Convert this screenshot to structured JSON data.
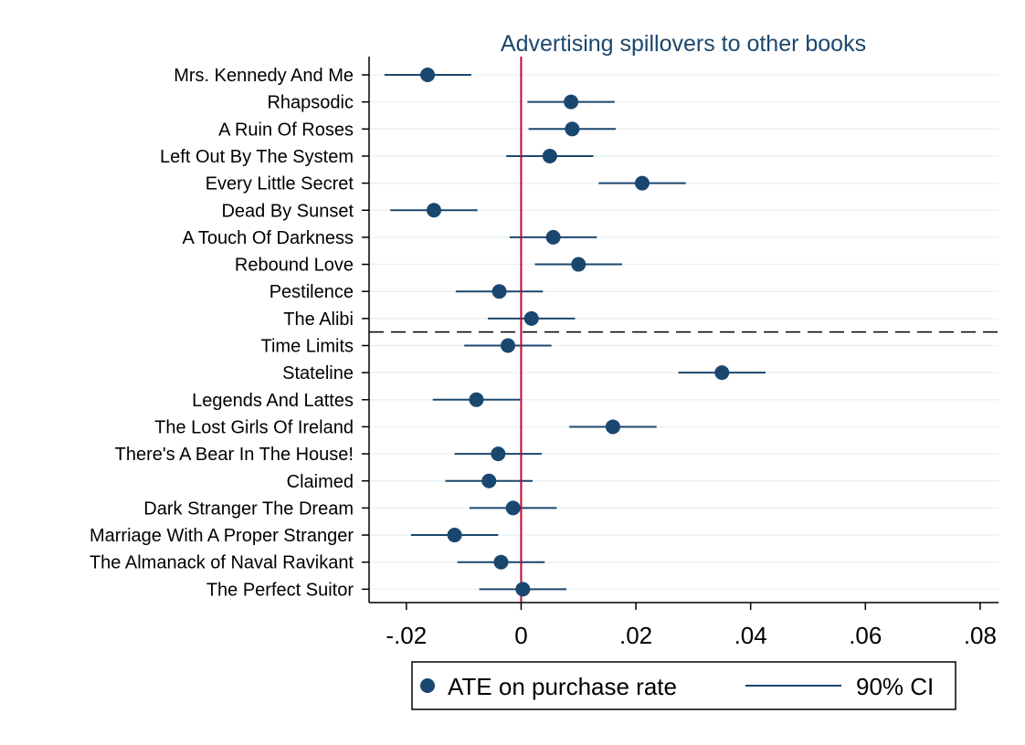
{
  "chart_data": {
    "type": "coefficient-plot",
    "title": "Advertising spillovers to other books",
    "xlabel": "",
    "ylabel": "",
    "xlim": [
      -0.0265,
      0.0832
    ],
    "x_ticks": [
      {
        "value": -0.02,
        "label": "-.02"
      },
      {
        "value": 0,
        "label": "0"
      },
      {
        "value": 0.02,
        "label": ".02"
      },
      {
        "value": 0.04,
        "label": ".04"
      },
      {
        "value": 0.06,
        "label": ".06"
      },
      {
        "value": 0.08,
        "label": ".08"
      }
    ],
    "reference_line_x": 0,
    "separator_after_index": 9,
    "grid": true,
    "legend": {
      "placement": "bottom",
      "entries": [
        {
          "label": "ATE on purchase rate",
          "marker": "circle"
        },
        {
          "label": "90% CI",
          "marker": "line"
        }
      ]
    },
    "colors": {
      "point": "#1a476f",
      "ci": "#1a476f",
      "reference_line": "#c10534",
      "grid": "#eaf2f3",
      "separator": "#000000"
    },
    "categories": [
      "Mrs. Kennedy And Me",
      "Rhapsodic",
      "A Ruin Of Roses",
      "Left Out By The System",
      "Every Little Secret",
      "Dead By Sunset",
      "A Touch Of Darkness",
      "Rebound Love",
      "Pestilence",
      "The Alibi",
      "Time Limits",
      "Stateline",
      "Legends And Lattes",
      "The Lost Girls Of Ireland",
      "There's A Bear In The House!",
      "Claimed",
      "Dark Stranger The Dream",
      "Marriage With A Proper Stranger",
      "The Almanack of Naval Ravikant",
      "The Perfect Suitor"
    ],
    "series": [
      {
        "name": "ATE on purchase rate",
        "values": [
          -0.0163,
          0.0087,
          0.0089,
          0.005,
          0.0211,
          -0.0152,
          0.0056,
          0.01,
          -0.0038,
          0.0018,
          -0.0023,
          0.035,
          -0.0078,
          0.016,
          -0.004,
          -0.0056,
          -0.0014,
          -0.0116,
          -0.0035,
          0.0003
        ]
      },
      {
        "name": "90% CI",
        "lower": [
          -0.0238,
          0.0011,
          0.0013,
          -0.0026,
          0.0135,
          -0.0228,
          -0.002,
          0.0024,
          -0.0114,
          -0.0058,
          -0.0099,
          0.0274,
          -0.0154,
          0.0084,
          -0.0116,
          -0.0132,
          -0.009,
          -0.0192,
          -0.0111,
          -0.0073
        ],
        "upper": [
          -0.0087,
          0.0163,
          0.0165,
          0.0126,
          0.0287,
          -0.0076,
          0.0132,
          0.0176,
          0.0038,
          0.0094,
          0.0053,
          0.0426,
          -0.0002,
          0.0236,
          0.0036,
          0.002,
          0.0062,
          -0.004,
          0.0041,
          0.0079
        ]
      }
    ]
  }
}
